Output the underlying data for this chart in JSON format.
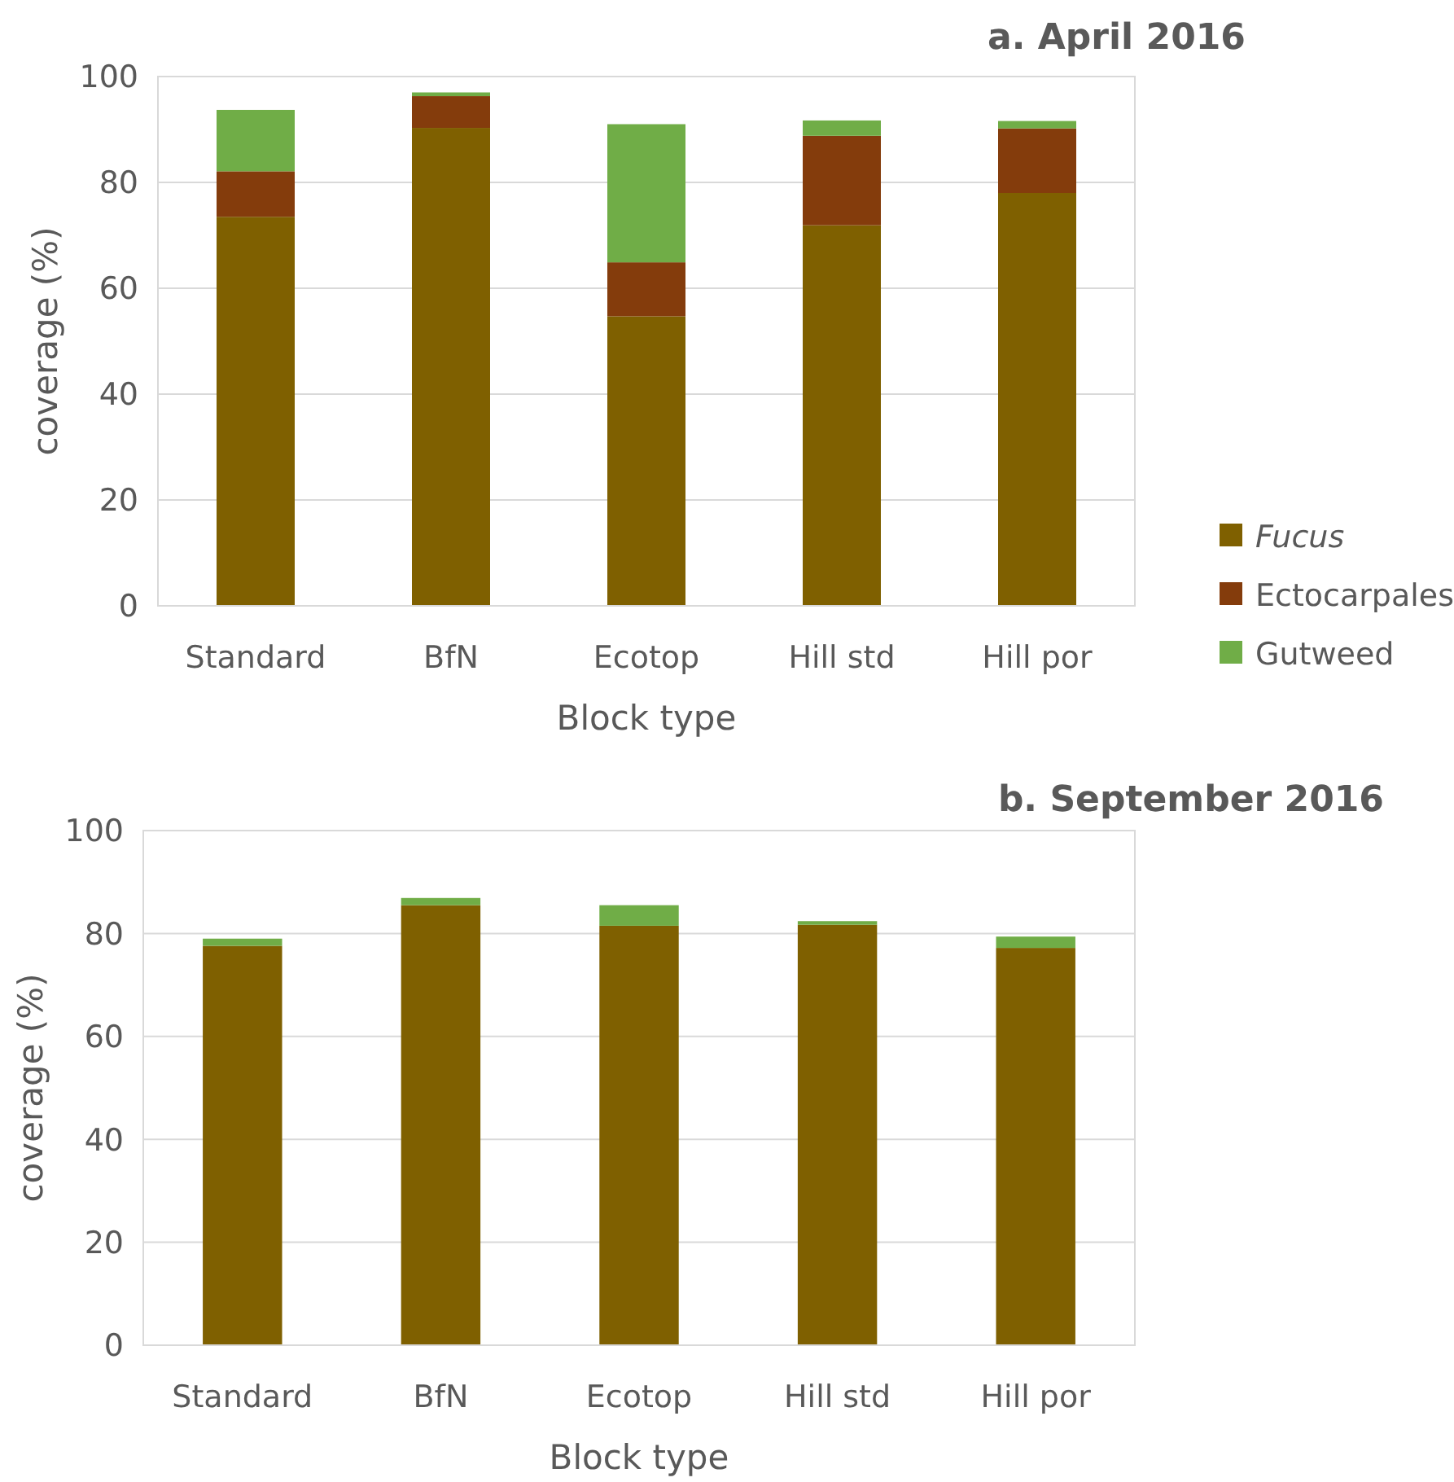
{
  "chart_data": [
    {
      "type": "bar",
      "title": "a. April 2016",
      "xlabel": "Block type",
      "ylabel": "coverage (%)",
      "categories": [
        "Standard",
        "BfN",
        "Ecotop",
        "Hill std",
        "Hill por"
      ],
      "stacked": true,
      "ylim": [
        0,
        100
      ],
      "yticks": [
        0,
        20,
        40,
        60,
        80,
        100
      ],
      "grid": "y",
      "legend": "right",
      "series": [
        {
          "name": "Fucus",
          "color": "#7f6000",
          "values": [
            73.5,
            90.3,
            54.7,
            71.9,
            78.0
          ]
        },
        {
          "name": "Ectocarpales",
          "color": "#843c0c",
          "values": [
            8.6,
            6.0,
            10.2,
            16.9,
            12.2
          ]
        },
        {
          "name": "Gutweed",
          "color": "#70ad47",
          "values": [
            11.6,
            0.7,
            26.1,
            2.9,
            1.4
          ]
        }
      ]
    },
    {
      "type": "bar",
      "title": "b. September 2016",
      "xlabel": "Block type",
      "ylabel": "coverage (%)",
      "categories": [
        "Standard",
        "BfN",
        "Ecotop",
        "Hill std",
        "Hill por"
      ],
      "stacked": true,
      "ylim": [
        0,
        100
      ],
      "yticks": [
        0,
        20,
        40,
        60,
        80,
        100
      ],
      "grid": "y",
      "series": [
        {
          "color": "#7f6000",
          "values": [
            77.6,
            85.5,
            81.5,
            81.7,
            77.2
          ]
        },
        {
          "color": "#70ad47",
          "values": [
            1.4,
            1.4,
            4.0,
            0.7,
            2.2
          ]
        }
      ]
    }
  ]
}
